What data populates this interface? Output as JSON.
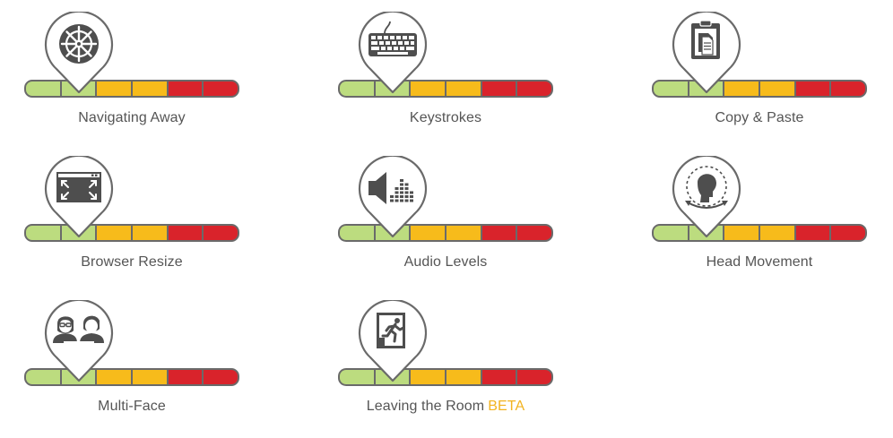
{
  "gauge_colors": [
    "#bcdc7f",
    "#bcdc7f",
    "#f7bb1b",
    "#f7bb1b",
    "#d9232b",
    "#d9232b"
  ],
  "icon_color": "#4e4e4e",
  "beta_color": "#f2b320",
  "tiles": [
    {
      "label": "Navigating Away",
      "icon": "ship-wheel-icon"
    },
    {
      "label": "Keystrokes",
      "icon": "keyboard-icon"
    },
    {
      "label": "Copy & Paste",
      "icon": "clipboard-copy-icon"
    },
    {
      "label": "Browser Resize",
      "icon": "browser-resize-icon"
    },
    {
      "label": "Audio Levels",
      "icon": "audio-levels-icon"
    },
    {
      "label": "Head Movement",
      "icon": "head-movement-icon"
    },
    {
      "label": "Multi-Face",
      "icon": "multi-face-icon"
    },
    {
      "label": "Leaving the Room",
      "badge": "BETA",
      "icon": "exit-room-icon"
    }
  ]
}
